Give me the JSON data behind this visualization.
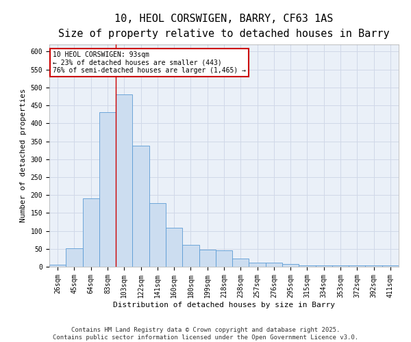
{
  "title_line1": "10, HEOL CORSWIGEN, BARRY, CF63 1AS",
  "title_line2": "Size of property relative to detached houses in Barry",
  "xlabel": "Distribution of detached houses by size in Barry",
  "ylabel": "Number of detached properties",
  "categories": [
    "26sqm",
    "45sqm",
    "64sqm",
    "83sqm",
    "103sqm",
    "122sqm",
    "141sqm",
    "160sqm",
    "180sqm",
    "199sqm",
    "218sqm",
    "238sqm",
    "257sqm",
    "276sqm",
    "295sqm",
    "315sqm",
    "334sqm",
    "353sqm",
    "372sqm",
    "392sqm",
    "411sqm"
  ],
  "values": [
    5,
    52,
    191,
    432,
    480,
    337,
    177,
    109,
    61,
    47,
    46,
    22,
    11,
    11,
    7,
    4,
    4,
    3,
    4,
    3,
    3
  ],
  "bar_color": "#ccddf0",
  "bar_edge_color": "#5b9bd5",
  "grid_color": "#d0d8e8",
  "background_color": "#eaf0f8",
  "red_line_index": 3.5,
  "annotation_text": "10 HEOL CORSWIGEN: 93sqm\n← 23% of detached houses are smaller (443)\n76% of semi-detached houses are larger (1,465) →",
  "annotation_box_color": "#ffffff",
  "annotation_box_edge": "#cc0000",
  "red_line_color": "#cc0000",
  "ylim": [
    0,
    620
  ],
  "yticks": [
    0,
    50,
    100,
    150,
    200,
    250,
    300,
    350,
    400,
    450,
    500,
    550,
    600
  ],
  "footnote": "Contains HM Land Registry data © Crown copyright and database right 2025.\nContains public sector information licensed under the Open Government Licence v3.0.",
  "title_fontsize": 11,
  "subtitle_fontsize": 9,
  "label_fontsize": 8,
  "tick_fontsize": 7,
  "footnote_fontsize": 6.5
}
